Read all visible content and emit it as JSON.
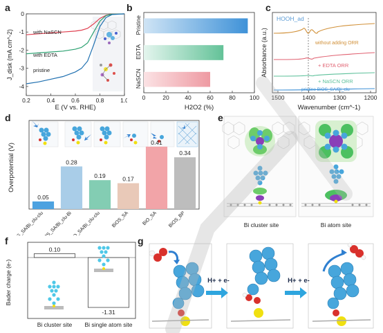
{
  "panels": {
    "a": {
      "label": "a"
    },
    "b": {
      "label": "b"
    },
    "c": {
      "label": "c"
    },
    "d": {
      "label": "d"
    },
    "e": {
      "label": "e"
    },
    "f": {
      "label": "f"
    },
    "g": {
      "label": "g"
    }
  },
  "colors": {
    "blue": "#5aa7e0",
    "green": "#7ccfa6",
    "pink": "#f0a0a8",
    "orange": "#e39a3a",
    "atom_blue": "#47a6dc",
    "atom_red": "#d9312c",
    "atom_yellow": "#f0e010"
  },
  "chart_data": [
    {
      "panel": "a",
      "type": "line",
      "xlabel": "E (V vs. RHE)",
      "ylabel": "J_disk (mA cm^-2)",
      "xlim": [
        0.2,
        1.0
      ],
      "ylim": [
        -4.5,
        0
      ],
      "xticks": [
        "0.2",
        "0.4",
        "0.6",
        "0.8",
        "1.0"
      ],
      "yticks": [
        "0",
        "-1",
        "-2",
        "-3",
        "-4"
      ],
      "series": [
        {
          "name": "with NaSCN",
          "color": "#e04050",
          "x": [
            0.2,
            0.3,
            0.4,
            0.5,
            0.6,
            0.65,
            0.7,
            0.75,
            0.8,
            0.85,
            0.9,
            1.0
          ],
          "y": [
            -1.15,
            -1.1,
            -1.05,
            -1.0,
            -0.95,
            -0.9,
            -0.8,
            -0.55,
            -0.25,
            -0.08,
            -0.02,
            0
          ]
        },
        {
          "name": "with EDTA",
          "color": "#2aa070",
          "x": [
            0.2,
            0.3,
            0.4,
            0.5,
            0.6,
            0.65,
            0.7,
            0.75,
            0.8,
            0.85,
            0.9,
            1.0
          ],
          "y": [
            -2.2,
            -2.15,
            -2.1,
            -2.05,
            -1.95,
            -1.85,
            -1.6,
            -1.0,
            -0.4,
            -0.1,
            -0.02,
            0
          ]
        },
        {
          "name": "pristine",
          "color": "#1e6fb0",
          "x": [
            0.2,
            0.3,
            0.4,
            0.5,
            0.6,
            0.65,
            0.7,
            0.75,
            0.8,
            0.85,
            0.9,
            1.0
          ],
          "y": [
            -3.85,
            -3.75,
            -3.6,
            -3.45,
            -3.2,
            -3.0,
            -2.6,
            -1.7,
            -0.7,
            -0.2,
            -0.04,
            0
          ]
        }
      ]
    },
    {
      "panel": "b",
      "type": "bar",
      "categories": [
        "Pristine",
        "EDTA",
        "NaSCN"
      ],
      "values": [
        94,
        72,
        60
      ],
      "xlabel": "H2O2 (%)",
      "xlim": [
        0,
        100
      ],
      "xticks": [
        "0",
        "20",
        "40",
        "60",
        "80",
        "100"
      ]
    },
    {
      "panel": "c",
      "type": "line",
      "xlabel": "Wavenumber (cm^-1)",
      "ylabel": "Absorbance (a.u.)",
      "xticks": [
        "1500",
        "1400",
        "1300",
        "1200"
      ],
      "annotation": "HOOH_ad",
      "series": [
        {
          "name": "without adding ORR",
          "color": "#d19038"
        },
        {
          "name": "+ EDTA ORR",
          "color": "#e06070"
        },
        {
          "name": "+ NaSCN ORR",
          "color": "#5cc09a"
        },
        {
          "name": "pristine BiOS_SA/Bi_clu",
          "color": "#3b8fd6"
        }
      ]
    },
    {
      "panel": "d",
      "type": "bar",
      "ylabel": "Overpotential (V)",
      "categories": [
        "BiOS_SA/Bi_clu-clu",
        "BiOS_SA/Bi_clu-Bi",
        "BiO_SA/Bi_clu-clu",
        "BiOS_SA",
        "BiO_SA",
        "BiOS_BP"
      ],
      "values": [
        0.05,
        0.28,
        0.19,
        0.17,
        0.41,
        0.34
      ],
      "value_labels": [
        "0.05",
        "0.28",
        "0.19",
        "0.17",
        "0.41",
        "0.34"
      ],
      "colors": [
        "#4da2e0",
        "#a9cde8",
        "#83cdb3",
        "#e9c9b8",
        "#f2a4a8",
        "#bdbdbd"
      ]
    },
    {
      "panel": "f",
      "type": "bar",
      "ylabel": "Bader charge (e-)",
      "categories": [
        "Bi cluster site",
        "Bi single atom site"
      ],
      "values": [
        0.1,
        -1.31
      ],
      "value_labels": [
        "0.10",
        "-1.31"
      ]
    }
  ],
  "panel_e": {
    "captions": [
      "Bi cluster site",
      "Bi atom site"
    ]
  },
  "panel_g": {
    "steps": [
      "H+ + e-",
      "H+ + e-"
    ]
  }
}
